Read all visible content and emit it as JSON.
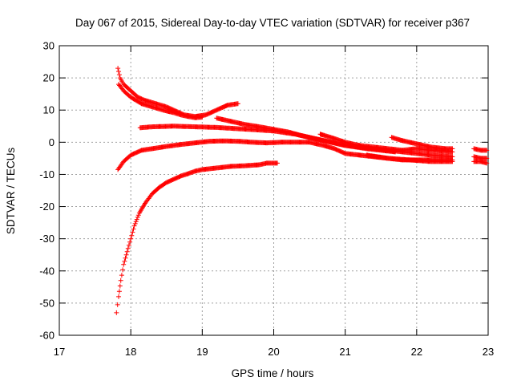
{
  "chart_data": {
    "type": "scatter",
    "title": "Day 067 of 2015, Sidereal Day-to-day VTEC variation (SDTVAR) for receiver p367",
    "xlabel": "GPS time / hours",
    "ylabel": "SDTVAR / TECUs",
    "xlim": [
      17,
      23
    ],
    "ylim": [
      -60,
      30
    ],
    "xticks": [
      17,
      18,
      19,
      20,
      21,
      22,
      23
    ],
    "yticks": [
      -60,
      -50,
      -40,
      -30,
      -20,
      -10,
      0,
      10,
      20,
      30
    ],
    "xtick_labels": [
      "17",
      "18",
      "19",
      "20",
      "21",
      "22",
      "23"
    ],
    "ytick_labels": [
      "-60",
      "-50",
      "-40",
      "-30",
      "-20",
      "-10",
      "0",
      "10",
      "20",
      "30"
    ],
    "grid": true,
    "marker": "+",
    "color": "#ff0000",
    "series": [
      {
        "points": [
          [
            17.82,
            23
          ],
          [
            17.85,
            20
          ],
          [
            17.9,
            18
          ],
          [
            18.0,
            16
          ],
          [
            18.1,
            14
          ],
          [
            18.2,
            13
          ],
          [
            18.35,
            12
          ],
          [
            18.5,
            11
          ],
          [
            18.6,
            10
          ],
          [
            18.75,
            8.5
          ],
          [
            18.9,
            8
          ],
          [
            19.05,
            8.5
          ],
          [
            19.2,
            10
          ],
          [
            19.35,
            11.5
          ],
          [
            19.5,
            12
          ]
        ]
      },
      {
        "points": [
          [
            17.83,
            18
          ],
          [
            17.9,
            16
          ],
          [
            18.0,
            14
          ],
          [
            18.15,
            12
          ],
          [
            18.3,
            11
          ],
          [
            18.45,
            10
          ],
          [
            18.6,
            9.2
          ],
          [
            18.7,
            8.5
          ],
          [
            18.8,
            8
          ],
          [
            18.9,
            7.6
          ],
          [
            19.0,
            7.8
          ]
        ]
      },
      {
        "points": [
          [
            18.13,
            4.5
          ],
          [
            18.3,
            4.8
          ],
          [
            18.6,
            5
          ],
          [
            18.9,
            4.8
          ],
          [
            19.2,
            4.6
          ],
          [
            19.5,
            4.2
          ],
          [
            19.8,
            3.8
          ],
          [
            20.0,
            3.5
          ],
          [
            20.3,
            2.5
          ],
          [
            20.5,
            1.5
          ],
          [
            20.7,
            0.5
          ],
          [
            21.0,
            -1
          ],
          [
            21.3,
            -2
          ],
          [
            21.5,
            -2.5
          ],
          [
            21.7,
            -3
          ]
        ]
      },
      {
        "points": [
          [
            17.82,
            -8.5
          ],
          [
            17.9,
            -6
          ],
          [
            18.0,
            -4
          ],
          [
            18.15,
            -2.5
          ],
          [
            18.3,
            -2
          ],
          [
            18.5,
            -1.3
          ],
          [
            18.7,
            -0.7
          ],
          [
            18.9,
            -0.2
          ],
          [
            19.1,
            0.3
          ],
          [
            19.3,
            0.4
          ],
          [
            19.5,
            0.3
          ],
          [
            19.7,
            0
          ],
          [
            19.9,
            -0.2
          ],
          [
            20.1,
            0
          ],
          [
            20.3,
            0
          ],
          [
            20.5,
            0
          ],
          [
            20.7,
            -1
          ],
          [
            20.85,
            -2
          ],
          [
            21.0,
            -3.5
          ],
          [
            21.2,
            -4
          ],
          [
            21.4,
            -4.5
          ],
          [
            21.6,
            -5
          ],
          [
            21.8,
            -5.5
          ],
          [
            22.0,
            -5.5
          ],
          [
            22.2,
            -5.5
          ],
          [
            22.5,
            -5.5
          ]
        ]
      },
      {
        "points": [
          [
            17.8,
            -53
          ],
          [
            17.83,
            -48
          ],
          [
            17.86,
            -43
          ],
          [
            17.9,
            -38
          ],
          [
            17.95,
            -34
          ],
          [
            18.0,
            -30
          ],
          [
            18.05,
            -26
          ],
          [
            18.12,
            -22
          ],
          [
            18.2,
            -19
          ],
          [
            18.3,
            -16
          ],
          [
            18.4,
            -14
          ],
          [
            18.5,
            -12.5
          ],
          [
            18.6,
            -11.5
          ],
          [
            18.7,
            -10.5
          ],
          [
            18.8,
            -9.8
          ],
          [
            18.9,
            -9
          ],
          [
            19.0,
            -8.5
          ],
          [
            19.2,
            -8
          ],
          [
            19.4,
            -7.5
          ],
          [
            19.6,
            -7.3
          ],
          [
            19.8,
            -7
          ],
          [
            19.9,
            -6.5
          ],
          [
            20.05,
            -6.5
          ]
        ]
      },
      {
        "points": [
          [
            19.2,
            7.5
          ],
          [
            19.4,
            6.5
          ],
          [
            19.6,
            5.5
          ],
          [
            19.8,
            4.8
          ],
          [
            20.0,
            4
          ],
          [
            20.2,
            3.2
          ],
          [
            20.4,
            2
          ],
          [
            20.6,
            1
          ],
          [
            20.8,
            0
          ],
          [
            21.0,
            -1
          ],
          [
            21.2,
            -1.5
          ],
          [
            21.4,
            -2
          ],
          [
            21.6,
            -2.5
          ],
          [
            21.8,
            -3
          ],
          [
            22.0,
            -3.5
          ],
          [
            22.2,
            -4
          ],
          [
            22.5,
            -4.5
          ]
        ]
      },
      {
        "points": [
          [
            20.65,
            2.5
          ],
          [
            20.8,
            1.5
          ],
          [
            21.0,
            0
          ],
          [
            21.2,
            -1
          ],
          [
            21.4,
            -1.5
          ],
          [
            21.6,
            -2
          ],
          [
            21.8,
            -2.5
          ],
          [
            22.0,
            -2
          ],
          [
            22.2,
            -2.5
          ],
          [
            22.5,
            -3
          ]
        ]
      },
      {
        "points": [
          [
            21.65,
            1.5
          ],
          [
            21.8,
            0.5
          ],
          [
            22.0,
            -0.5
          ],
          [
            22.2,
            -1.5
          ],
          [
            22.4,
            -2
          ],
          [
            22.5,
            -2
          ]
        ]
      },
      {
        "points": [
          [
            21.3,
            -4
          ],
          [
            21.6,
            -5
          ],
          [
            21.9,
            -5.5
          ],
          [
            22.2,
            -6
          ],
          [
            22.5,
            -6
          ]
        ]
      },
      {
        "points": [
          [
            22.8,
            -2
          ],
          [
            22.9,
            -2.5
          ],
          [
            22.98,
            -2.5
          ]
        ]
      },
      {
        "points": [
          [
            22.8,
            -4.5
          ],
          [
            22.9,
            -5
          ],
          [
            22.98,
            -5
          ]
        ]
      },
      {
        "points": [
          [
            22.8,
            -6
          ],
          [
            22.9,
            -6
          ],
          [
            22.98,
            -6.5
          ]
        ]
      }
    ]
  }
}
